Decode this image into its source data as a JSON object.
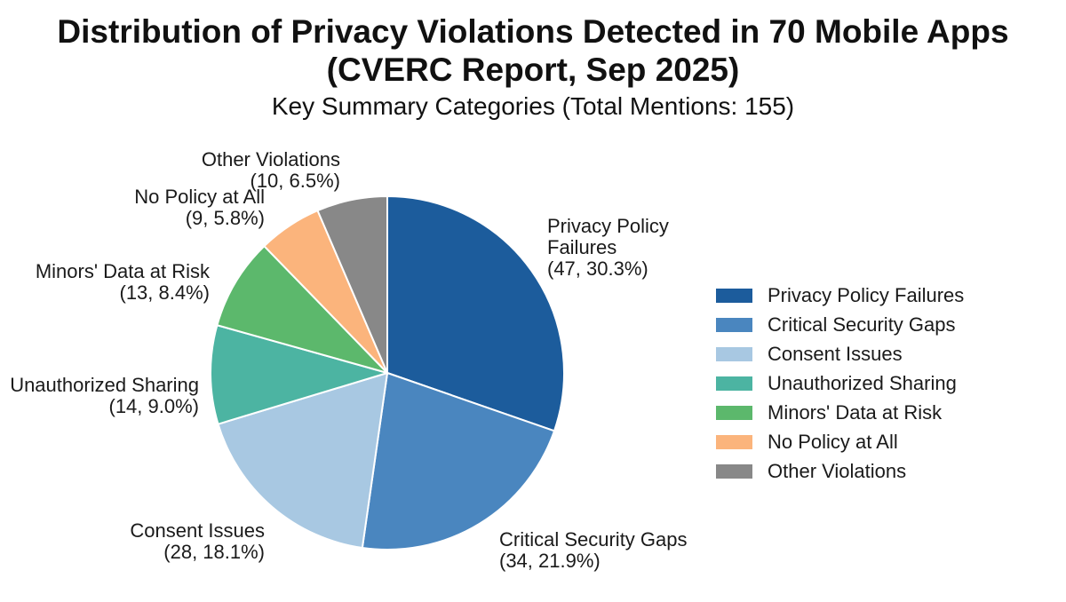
{
  "chart_data": {
    "type": "pie",
    "title_lines": [
      "Distribution of Privacy Violations Detected in 70 Mobile Apps",
      "(CVERC Report, Sep 2025)"
    ],
    "subtitle": "Key Summary Categories (Total Mentions: 155)",
    "total": 155,
    "start_angle_deg": 0,
    "direction": "clockwise",
    "legend_position": "right",
    "slices": [
      {
        "category": "Privacy Policy Failures",
        "label_lines": [
          "Privacy Policy",
          "Failures",
          "(47, 30.3%)"
        ],
        "value": 47,
        "percent": "30.3%",
        "color": "#1c5c9c"
      },
      {
        "category": "Critical Security Gaps",
        "label_lines": [
          "Critical Security Gaps",
          "(34, 21.9%)"
        ],
        "value": 34,
        "percent": "21.9%",
        "color": "#4a86bf"
      },
      {
        "category": "Consent Issues",
        "label_lines": [
          "Consent Issues",
          "(28, 18.1%)"
        ],
        "value": 28,
        "percent": "18.1%",
        "color": "#a8c8e2"
      },
      {
        "category": "Unauthorized Sharing",
        "label_lines": [
          "Unauthorized Sharing",
          "(14, 9.0%)"
        ],
        "value": 14,
        "percent": "9.0%",
        "color": "#4cb4a2"
      },
      {
        "category": "Minors' Data at Risk",
        "label_lines": [
          "Minors' Data at Risk",
          "(13, 8.4%)"
        ],
        "value": 13,
        "percent": "8.4%",
        "color": "#5cb86c"
      },
      {
        "category": "No Policy at All",
        "label_lines": [
          "No Policy at All",
          "(9, 5.8%)"
        ],
        "value": 9,
        "percent": "5.8%",
        "color": "#fbb47c"
      },
      {
        "category": "Other Violations",
        "label_lines": [
          "Other Violations",
          "(10, 6.5%)"
        ],
        "value": 10,
        "percent": "6.5%",
        "color": "#888888"
      }
    ]
  }
}
